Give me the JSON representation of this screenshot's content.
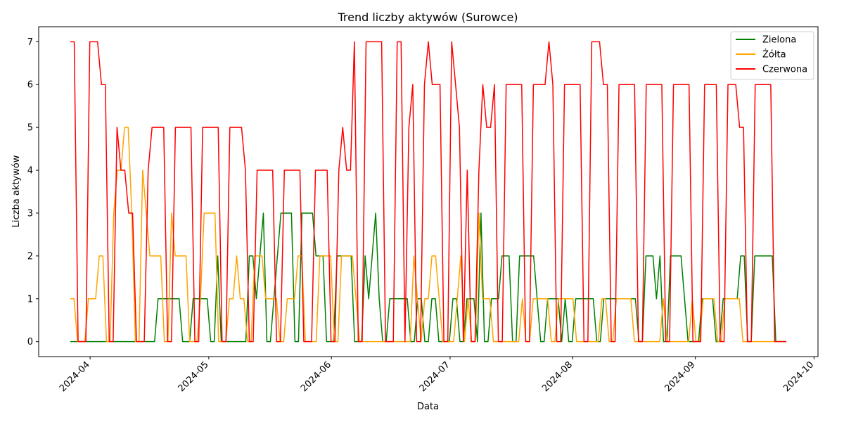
{
  "chart_data": {
    "type": "line",
    "title": "Trend liczby aktywów (Surowce)",
    "xlabel": "Data",
    "ylabel": "Liczba aktywów",
    "x_start": "2024-03-27",
    "x_end": "2024-09-24",
    "x_range": [
      "2024-03-19",
      "2024-10-02"
    ],
    "ylim": [
      -0.35,
      7.35
    ],
    "x_ticks": [
      "2024-04-01",
      "2024-05-01",
      "2024-06-01",
      "2024-07-01",
      "2024-08-01",
      "2024-09-01",
      "2024-10-01"
    ],
    "x_tick_labels": [
      "2024-04",
      "2024-05",
      "2024-06",
      "2024-07",
      "2024-08",
      "2024-09",
      "2024-10"
    ],
    "y_ticks": [
      0,
      1,
      2,
      3,
      4,
      5,
      6,
      7
    ],
    "grid": false,
    "legend_position": "top-right",
    "series": [
      {
        "name": "Zielona",
        "color": "#008000",
        "values": [
          0,
          0,
          0,
          0,
          0,
          0,
          0,
          0,
          0,
          0,
          0,
          0,
          0,
          0,
          0,
          0,
          0,
          0,
          0,
          0,
          0,
          0,
          0,
          0,
          0,
          1,
          1,
          1,
          1,
          1,
          1,
          1,
          0,
          0,
          0,
          1,
          1,
          1,
          1,
          1,
          0,
          0,
          2,
          0,
          0,
          0,
          0,
          0,
          0,
          0,
          0,
          2,
          2,
          1,
          2,
          3,
          0,
          0,
          1,
          2,
          3,
          3,
          3,
          3,
          0,
          0,
          3,
          3,
          3,
          3,
          2,
          2,
          2,
          0,
          0,
          0,
          2,
          2,
          2,
          2,
          2,
          0,
          0,
          0,
          2,
          1,
          2,
          3,
          1,
          0,
          0,
          1,
          1,
          1,
          1,
          1,
          1,
          0,
          0,
          1,
          1,
          0,
          0,
          1,
          1,
          0,
          0,
          0,
          0,
          1,
          1,
          0,
          0,
          1,
          1,
          1,
          0,
          3,
          0,
          0,
          1,
          1,
          1,
          2,
          2,
          2,
          0,
          0,
          2,
          2,
          2,
          2,
          2,
          1,
          0,
          0,
          1,
          1,
          1,
          1,
          0,
          1,
          0,
          0,
          1,
          1,
          1,
          1,
          1,
          1,
          0,
          0,
          1,
          1,
          1,
          1,
          1,
          1,
          1,
          1,
          1,
          1,
          0,
          0,
          2,
          2,
          2,
          1,
          2,
          0,
          0,
          2,
          2,
          2,
          2,
          1,
          0,
          0,
          0,
          0,
          1,
          1,
          1,
          1,
          0,
          0,
          1,
          1,
          1,
          1,
          1,
          2,
          2,
          0,
          0,
          2,
          2,
          2,
          2,
          2,
          2,
          0,
          0,
          0,
          0
        ]
      },
      {
        "name": "Żółta",
        "color": "#ffa500",
        "values": [
          1,
          1,
          0,
          0,
          0,
          1,
          1,
          1,
          2,
          2,
          0,
          0,
          3,
          4,
          4,
          5,
          5,
          3,
          0,
          0,
          4,
          3,
          2,
          2,
          2,
          2,
          0,
          0,
          3,
          2,
          2,
          2,
          2,
          0,
          0,
          0,
          1,
          3,
          3,
          3,
          3,
          0,
          0,
          0,
          1,
          1,
          2,
          1,
          1,
          0,
          0,
          2,
          2,
          2,
          1,
          1,
          1,
          1,
          0,
          0,
          1,
          1,
          1,
          2,
          2,
          0,
          0,
          0,
          0,
          2,
          2,
          2,
          2,
          0,
          0,
          2,
          2,
          2,
          2,
          1,
          0,
          0,
          0,
          0,
          0,
          0,
          0,
          0,
          0,
          0,
          0,
          0,
          0,
          0,
          0,
          2,
          1,
          0,
          1,
          1,
          2,
          2,
          1,
          0,
          0,
          0,
          0,
          1,
          2,
          0,
          1,
          0,
          0,
          3,
          1,
          1,
          1,
          0,
          0,
          0,
          0,
          0,
          0,
          0,
          0,
          1,
          0,
          0,
          1,
          1,
          1,
          1,
          1,
          0,
          0,
          1,
          1,
          1,
          1,
          1,
          0,
          0,
          0,
          0,
          0,
          0,
          0,
          1,
          1,
          0,
          0,
          1,
          1,
          1,
          1,
          1,
          0,
          0,
          0,
          0,
          0,
          0,
          0,
          0,
          1,
          0,
          0,
          0,
          0,
          0,
          0,
          0,
          1,
          0,
          0,
          1,
          1,
          1,
          1,
          0,
          0,
          1,
          1,
          1,
          1,
          1,
          0,
          0,
          0,
          0,
          0,
          0,
          0,
          0,
          0,
          0,
          0,
          0,
          0
        ]
      },
      {
        "name": "Czerwona",
        "color": "#ff0000",
        "values": [
          7,
          7,
          0,
          0,
          0,
          7,
          7,
          7,
          6,
          6,
          0,
          0,
          5,
          4,
          4,
          3,
          3,
          0,
          0,
          0,
          4,
          5,
          5,
          5,
          5,
          0,
          0,
          5,
          5,
          5,
          5,
          5,
          0,
          0,
          5,
          5,
          5,
          5,
          5,
          0,
          0,
          5,
          5,
          5,
          5,
          4,
          0,
          0,
          4,
          4,
          4,
          4,
          4,
          0,
          0,
          4,
          4,
          4,
          4,
          4,
          0,
          0,
          0,
          4,
          4,
          4,
          4,
          0,
          0,
          4,
          5,
          4,
          4,
          7,
          0,
          0,
          7,
          7,
          7,
          7,
          7,
          0,
          0,
          0,
          7,
          7,
          0,
          5,
          6,
          0,
          0,
          6,
          7,
          6,
          6,
          6,
          0,
          0,
          7,
          6,
          5,
          0,
          4,
          0,
          0,
          4,
          6,
          5,
          5,
          6,
          0,
          0,
          6,
          6,
          6,
          6,
          6,
          0,
          0,
          6,
          6,
          6,
          6,
          7,
          6,
          0,
          0,
          6,
          6,
          6,
          6,
          6,
          0,
          0,
          7,
          7,
          7,
          6,
          6,
          0,
          0,
          6,
          6,
          6,
          6,
          6,
          0,
          0,
          6,
          6,
          6,
          6,
          6,
          0,
          0,
          6,
          6,
          6,
          6,
          6,
          0,
          0,
          0,
          6,
          6,
          6,
          6,
          0,
          0,
          6,
          6,
          6,
          5,
          5,
          0,
          0,
          6,
          6,
          6,
          6,
          6,
          0,
          0,
          0,
          0
        ]
      }
    ]
  }
}
